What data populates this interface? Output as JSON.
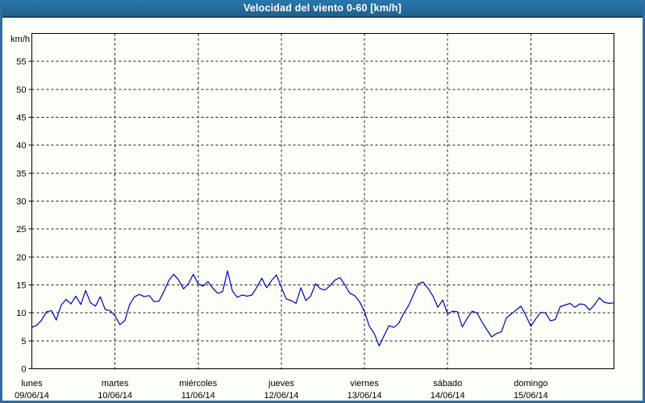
{
  "window": {
    "title": "Velocidad del viento 0-60 [km/h]"
  },
  "colors": {
    "frame_border": "#2e6da3",
    "titlebar_bg": "#23679a",
    "titlebar_text": "#ffffff",
    "page_bg": "#fcfef8",
    "grid": "#1a1a1a",
    "axis": "#000000",
    "series": "#0000bb",
    "label_text": "#000000"
  },
  "chart_data": {
    "type": "line",
    "title": "Velocidad del viento 0-60 [km/h]",
    "ylabel": "km/h",
    "xlabel": "",
    "ylim": [
      0,
      60
    ],
    "ytick_step": 5,
    "ytick_labels": [
      "0",
      "5",
      "10",
      "15",
      "20",
      "25",
      "30",
      "35",
      "40",
      "45",
      "50",
      "55"
    ],
    "grid": "dashed",
    "legend": "none",
    "days": [
      {
        "weekday": "lunes",
        "date": "09/06/14"
      },
      {
        "weekday": "martes",
        "date": "10/06/14"
      },
      {
        "weekday": "miércoles",
        "date": "11/06/14"
      },
      {
        "weekday": "jueves",
        "date": "12/06/14"
      },
      {
        "weekday": "viernes",
        "date": "13/06/14"
      },
      {
        "weekday": "sábado",
        "date": "14/06/14"
      },
      {
        "weekday": "domingo",
        "date": "15/06/14"
      }
    ],
    "points_per_day": 17,
    "series": [
      {
        "name": "velocidad_viento_kmh",
        "values": [
          7.4,
          7.8,
          8.7,
          10.2,
          10.4,
          8.7,
          11.4,
          12.4,
          11.6,
          13.0,
          11.5,
          14.0,
          11.8,
          11.2,
          12.9,
          10.6,
          10.4,
          9.5,
          7.9,
          8.6,
          11.5,
          12.9,
          13.3,
          12.9,
          13.1,
          12.0,
          12.1,
          13.8,
          15.8,
          16.9,
          15.9,
          14.3,
          15.2,
          16.9,
          15.2,
          14.8,
          15.6,
          14.4,
          13.5,
          13.8,
          17.5,
          13.9,
          12.8,
          13.2,
          13.0,
          13.2,
          14.6,
          16.2,
          14.5,
          15.8,
          16.8,
          14.6,
          12.5,
          12.2,
          11.7,
          14.5,
          12.2,
          13.0,
          15.2,
          14.3,
          14.1,
          14.9,
          15.9,
          16.3,
          15.0,
          13.5,
          13.1,
          12.0,
          10.2,
          7.6,
          6.3,
          4.1,
          5.9,
          7.7,
          7.4,
          8.1,
          9.9,
          11.3,
          13.2,
          15.2,
          15.5,
          14.4,
          13.0,
          11.0,
          12.3,
          9.8,
          10.3,
          10.2,
          7.5,
          9.0,
          10.3,
          10.0,
          8.4,
          7.0,
          5.7,
          6.3,
          6.6,
          9.1,
          9.8,
          10.5,
          11.2,
          9.5,
          7.6,
          8.9,
          10.1,
          10.0,
          8.6,
          8.8,
          11.1,
          11.4,
          11.7,
          11.0,
          11.6,
          11.5,
          10.5,
          11.4,
          12.7,
          11.9,
          11.7,
          11.8
        ]
      }
    ]
  }
}
